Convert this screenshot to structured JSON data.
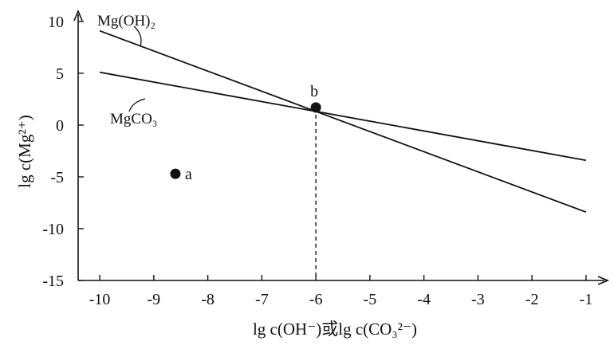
{
  "chart_data": {
    "type": "line",
    "title": "",
    "xlabel": "lg c(OH⁻)或lg c(CO₃²⁻)",
    "ylabel": "lg c(Mg²⁺)",
    "xlim": [
      -10.4,
      -0.6
    ],
    "ylim": [
      -15,
      11
    ],
    "x_ticks": [
      -10,
      -9,
      -8,
      -7,
      -6,
      -5,
      -4,
      -3,
      -2,
      -1
    ],
    "y_ticks": [
      10,
      5,
      0,
      -5,
      -10,
      -15
    ],
    "grid": false,
    "series": [
      {
        "name": "Mg(OH)₂",
        "x": [
          -10,
          -1
        ],
        "y": [
          9.1,
          -8.4
        ]
      },
      {
        "name": "MgCO₃",
        "x": [
          -10,
          -1
        ],
        "y": [
          5.1,
          -3.4
        ]
      }
    ],
    "points": [
      {
        "label": "a",
        "x": -8.6,
        "y": -4.7
      },
      {
        "label": "b",
        "x": -6.0,
        "y": 1.7
      }
    ],
    "reference_line": {
      "x": -6.0,
      "style": "dashed"
    }
  }
}
